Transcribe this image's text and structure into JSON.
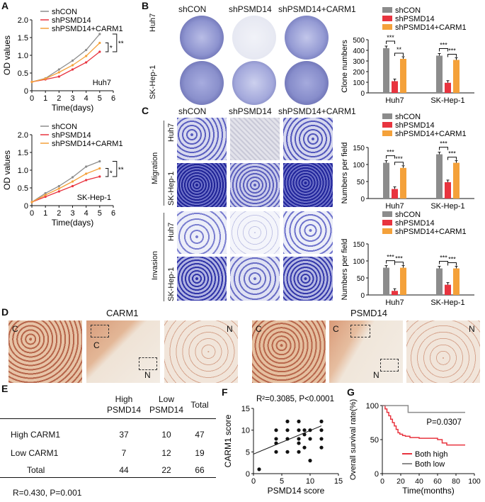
{
  "panels": {
    "A": "A",
    "B": "B",
    "C": "C",
    "D": "D",
    "E": "E",
    "F": "F",
    "G": "G"
  },
  "colors": {
    "shCON": "#8c8c8c",
    "shPSMD14": "#e8343f",
    "combo": "#f4a13a",
    "dark_stain": "#2a2aa0"
  },
  "groups": [
    "shCON",
    "shPSMD14",
    "shPSMD14+CARM1"
  ],
  "cells": [
    "Huh7",
    "SK-Hep-1"
  ],
  "panelA": [
    {
      "cell": "Huh7",
      "sig": [
        "*",
        "**"
      ]
    },
    {
      "cell": "SK-Hep-1",
      "sig": [
        "*",
        "**"
      ]
    }
  ],
  "panelB": {
    "col_headers": [
      "shCON",
      "shPSMD14",
      "shPSMD14+CARM1"
    ],
    "row_labels": [
      "Huh7",
      "SK-Hep-1"
    ]
  },
  "panelC": {
    "col_headers": [
      "shCON",
      "shPSMD14",
      "shPSMD14+CARM1"
    ],
    "groups": [
      "Migration",
      "Invasion"
    ],
    "row_labels": [
      "Huh7",
      "SK-Hep-1"
    ]
  },
  "panelD": {
    "titles": [
      "CARM1",
      "PSMD14"
    ],
    "marks": {
      "C": "C",
      "N": "N"
    }
  },
  "panelE": {
    "header": [
      "",
      "High\nPSMD14",
      "Low\nPSMD14",
      "Total"
    ],
    "rows": [
      [
        "High CARM1",
        "37",
        "10",
        "47"
      ],
      [
        "Low CARM1",
        "7",
        "12",
        "19"
      ],
      [
        "Total",
        "44",
        "22",
        "66"
      ]
    ],
    "footer": "R=0.430, P=0.001"
  },
  "chart_data": [
    {
      "id": "A-huh7",
      "type": "line",
      "x": [
        0,
        1,
        2,
        3,
        4,
        5
      ],
      "series": [
        {
          "name": "shCON",
          "values": [
            0.25,
            0.35,
            0.6,
            0.85,
            1.15,
            1.6
          ]
        },
        {
          "name": "shPSMD14",
          "values": [
            0.25,
            0.32,
            0.4,
            0.6,
            0.8,
            1.1
          ]
        },
        {
          "name": "shPSMD14+CARM1",
          "values": [
            0.25,
            0.34,
            0.52,
            0.72,
            0.98,
            1.35
          ]
        }
      ],
      "xlabel": "Time(days)",
      "ylabel": "OD values",
      "xlim": [
        0,
        6
      ],
      "ylim": [
        0,
        2.0
      ],
      "xticks": [
        "0",
        "1",
        "2",
        "3",
        "4",
        "5",
        "6"
      ],
      "yticks": [
        "0",
        "0.5",
        "1.0",
        "1.5",
        "2.0"
      ],
      "annotation": "Huh7"
    },
    {
      "id": "A-skhep1",
      "type": "line",
      "x": [
        0,
        1,
        2,
        3,
        4,
        5
      ],
      "series": [
        {
          "name": "shCON",
          "values": [
            0.1,
            0.35,
            0.55,
            0.8,
            1.1,
            1.25
          ]
        },
        {
          "name": "shPSMD14",
          "values": [
            0.1,
            0.25,
            0.4,
            0.55,
            0.72,
            0.82
          ]
        },
        {
          "name": "shPSMD14+CARM1",
          "values": [
            0.1,
            0.3,
            0.48,
            0.68,
            0.9,
            1.05
          ]
        }
      ],
      "xlabel": "Time(days)",
      "ylabel": "OD values",
      "xlim": [
        0,
        6
      ],
      "ylim": [
        0,
        2.0
      ],
      "xticks": [
        "0",
        "1",
        "2",
        "3",
        "4",
        "5",
        "6"
      ],
      "yticks": [
        "0",
        "0.5",
        "1.0",
        "1.5",
        "2.0"
      ],
      "annotation": "SK-Hep-1"
    },
    {
      "id": "B-bar",
      "type": "bar",
      "categories": [
        "Huh7",
        "SK-Hep-1"
      ],
      "series": [
        {
          "name": "shCON",
          "values": [
            420,
            350
          ]
        },
        {
          "name": "shPSMD14",
          "values": [
            110,
            95
          ]
        },
        {
          "name": "shPSMD14+CARM1",
          "values": [
            320,
            310
          ]
        }
      ],
      "ylabel": "Clone numbers",
      "ylim": [
        0,
        500
      ],
      "yticks": [
        "0",
        "100",
        "200",
        "300",
        "400",
        "500"
      ],
      "sig": [
        "***",
        "**",
        "***",
        "***"
      ]
    },
    {
      "id": "C-mig",
      "type": "bar",
      "categories": [
        "Huh7",
        "SK-Hep-1"
      ],
      "series": [
        {
          "name": "shCON",
          "values": [
            105,
            130
          ]
        },
        {
          "name": "shPSMD14",
          "values": [
            28,
            48
          ]
        },
        {
          "name": "shPSMD14+CARM1",
          "values": [
            90,
            105
          ]
        }
      ],
      "ylabel": "Numbers per field",
      "ylim": [
        0,
        150
      ],
      "yticks": [
        "0",
        "50",
        "100",
        "150"
      ],
      "sig": [
        "***",
        "***",
        "***",
        "***"
      ]
    },
    {
      "id": "C-inv",
      "type": "bar",
      "categories": [
        "Huh7",
        "SK-Hep-1"
      ],
      "series": [
        {
          "name": "shCON",
          "values": [
            80,
            78
          ]
        },
        {
          "name": "shPSMD14",
          "values": [
            12,
            30
          ]
        },
        {
          "name": "shPSMD14+CARM1",
          "values": [
            80,
            78
          ]
        }
      ],
      "ylabel": "Numbers per field",
      "ylim": [
        0,
        150
      ],
      "yticks": [
        "0",
        "50",
        "100",
        "150"
      ],
      "sig": [
        "***",
        "***",
        "***",
        "***"
      ]
    },
    {
      "id": "F-scatter",
      "type": "scatter",
      "points": [
        [
          1,
          1
        ],
        [
          4,
          5
        ],
        [
          4,
          7
        ],
        [
          4,
          8
        ],
        [
          4,
          10
        ],
        [
          6,
          5
        ],
        [
          6,
          8
        ],
        [
          6,
          10
        ],
        [
          6,
          12
        ],
        [
          8,
          5
        ],
        [
          8,
          7
        ],
        [
          8,
          8
        ],
        [
          8,
          10
        ],
        [
          8,
          12
        ],
        [
          9,
          6
        ],
        [
          9,
          9
        ],
        [
          9,
          10
        ],
        [
          10,
          3
        ],
        [
          10,
          8
        ],
        [
          10,
          10
        ],
        [
          12,
          6
        ],
        [
          12,
          8
        ],
        [
          12,
          10
        ],
        [
          12,
          12
        ]
      ],
      "fit": [
        [
          0,
          4.5
        ],
        [
          12,
          11
        ]
      ],
      "xlabel": "PSMD14 score",
      "ylabel": "CARM1 score",
      "xlim": [
        0,
        15
      ],
      "ylim": [
        0,
        15
      ],
      "xticks": [
        "0",
        "5",
        "10",
        "15"
      ],
      "yticks": [
        "0",
        "5",
        "10",
        "15"
      ],
      "annotation": "R²=0.3085, P<0.0001"
    },
    {
      "id": "G-km",
      "type": "line",
      "series": [
        {
          "name": "Both high",
          "x": [
            0,
            3,
            5,
            7,
            9,
            11,
            13,
            15,
            17,
            19,
            22,
            25,
            30,
            40,
            50,
            60,
            65,
            70,
            80,
            90
          ],
          "values": [
            100,
            95,
            90,
            85,
            80,
            75,
            70,
            65,
            60,
            58,
            56,
            55,
            53,
            52,
            52,
            50,
            45,
            42,
            42,
            42
          ]
        },
        {
          "name": "Both low",
          "x": [
            0,
            27,
            28,
            90
          ],
          "values": [
            100,
            100,
            90,
            90
          ]
        }
      ],
      "xlabel": "Time(months)",
      "ylabel": "Overall survival rate(%)",
      "xlim": [
        0,
        100
      ],
      "ylim": [
        0,
        100
      ],
      "xticks": [
        "0",
        "20",
        "40",
        "60",
        "80",
        "100"
      ],
      "yticks": [
        "0",
        "50",
        "100"
      ],
      "annotation": "P=0.0307"
    }
  ]
}
